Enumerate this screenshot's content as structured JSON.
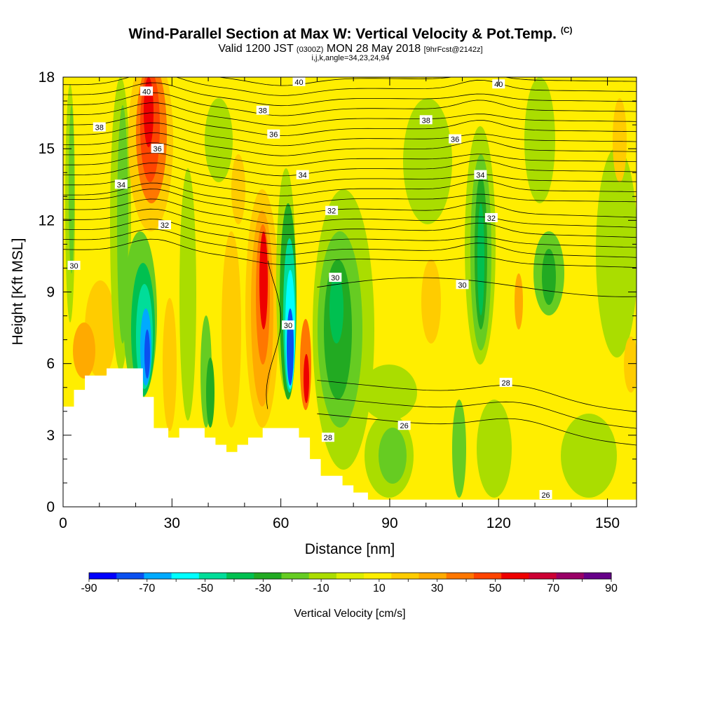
{
  "title": "Wind-Parallel Section at Max W: Vertical Velocity & Pot.Temp.",
  "title_mark": "(C)",
  "subtitle_main_a": "Valid 1200 JST",
  "subtitle_small_a": "(0300Z)",
  "subtitle_main_b": "MON 28 May 2018",
  "subtitle_small_b": "[9hrFcst@2142z]",
  "subtitle_line2": "i,j,k,angle=34,23,24,94",
  "chart_data": {
    "type": "heatmap",
    "xlabel": "Distance [nm]",
    "ylabel": "Height [Kft MSL]",
    "xlim": [
      0,
      158
    ],
    "ylim": [
      0,
      18
    ],
    "xticks": [
      0,
      30,
      60,
      90,
      120,
      150
    ],
    "yticks": [
      0,
      3,
      6,
      9,
      12,
      15,
      18
    ],
    "colorbar": {
      "label": "Vertical Velocity [cm/s]",
      "min": -90,
      "max": 90,
      "step": 10,
      "tick_labels": [
        "-90",
        "-70",
        "-50",
        "-30",
        "-10",
        "10",
        "30",
        "50",
        "70",
        "90"
      ],
      "colors": [
        "#0000ff",
        "#0a50f0",
        "#00aaff",
        "#00ffff",
        "#00dd99",
        "#00c050",
        "#22aa22",
        "#66cc22",
        "#aadd00",
        "#ddee00",
        "#ffee00",
        "#ffcc00",
        "#ffaa00",
        "#ff7700",
        "#ff4400",
        "#ee0000",
        "#cc0033",
        "#990066",
        "#660088"
      ]
    },
    "terrain": [
      [
        0,
        4.2
      ],
      [
        3,
        4.2
      ],
      [
        3,
        4.9
      ],
      [
        6,
        4.9
      ],
      [
        6,
        5.5
      ],
      [
        12,
        5.5
      ],
      [
        12,
        5.8
      ],
      [
        22,
        5.8
      ],
      [
        22,
        4.6
      ],
      [
        25,
        4.6
      ],
      [
        25,
        3.3
      ],
      [
        29,
        3.3
      ],
      [
        29,
        2.9
      ],
      [
        32,
        2.9
      ],
      [
        32,
        3.3
      ],
      [
        39,
        3.3
      ],
      [
        39,
        2.9
      ],
      [
        42,
        2.9
      ],
      [
        42,
        2.6
      ],
      [
        45,
        2.6
      ],
      [
        45,
        2.3
      ],
      [
        48,
        2.3
      ],
      [
        48,
        2.6
      ],
      [
        51,
        2.6
      ],
      [
        51,
        2.9
      ],
      [
        55,
        2.9
      ],
      [
        55,
        3.3
      ],
      [
        65,
        3.3
      ],
      [
        65,
        2.9
      ],
      [
        68,
        2.9
      ],
      [
        68,
        2.0
      ],
      [
        71,
        2.0
      ],
      [
        71,
        1.3
      ],
      [
        77,
        1.3
      ],
      [
        77,
        0.9
      ],
      [
        80,
        0.9
      ],
      [
        80,
        0.6
      ],
      [
        84,
        0.6
      ],
      [
        84,
        0.3
      ],
      [
        158,
        0.3
      ]
    ],
    "theta_labels": [
      {
        "text": "40",
        "x": 23,
        "y": 17.4
      },
      {
        "text": "40",
        "x": 65,
        "y": 17.8
      },
      {
        "text": "40",
        "x": 120,
        "y": 17.7
      },
      {
        "text": "38",
        "x": 10,
        "y": 15.9
      },
      {
        "text": "38",
        "x": 55,
        "y": 16.6
      },
      {
        "text": "38",
        "x": 100,
        "y": 16.2
      },
      {
        "text": "36",
        "x": 26,
        "y": 15.0
      },
      {
        "text": "36",
        "x": 58,
        "y": 15.6
      },
      {
        "text": "36",
        "x": 108,
        "y": 15.4
      },
      {
        "text": "34",
        "x": 16,
        "y": 13.5
      },
      {
        "text": "34",
        "x": 66,
        "y": 13.9
      },
      {
        "text": "34",
        "x": 115,
        "y": 13.9
      },
      {
        "text": "32",
        "x": 28,
        "y": 11.8
      },
      {
        "text": "32",
        "x": 74,
        "y": 12.4
      },
      {
        "text": "32",
        "x": 118,
        "y": 12.1
      },
      {
        "text": "30",
        "x": 3,
        "y": 10.1
      },
      {
        "text": "30",
        "x": 75,
        "y": 9.6
      },
      {
        "text": "30",
        "x": 110,
        "y": 9.3
      },
      {
        "text": "30",
        "x": 62,
        "y": 7.6
      },
      {
        "text": "28",
        "x": 122,
        "y": 5.2
      },
      {
        "text": "28",
        "x": 73,
        "y": 2.9
      },
      {
        "text": "26",
        "x": 94,
        "y": 3.4
      },
      {
        "text": "26",
        "x": 133,
        "y": 0.5
      }
    ]
  }
}
